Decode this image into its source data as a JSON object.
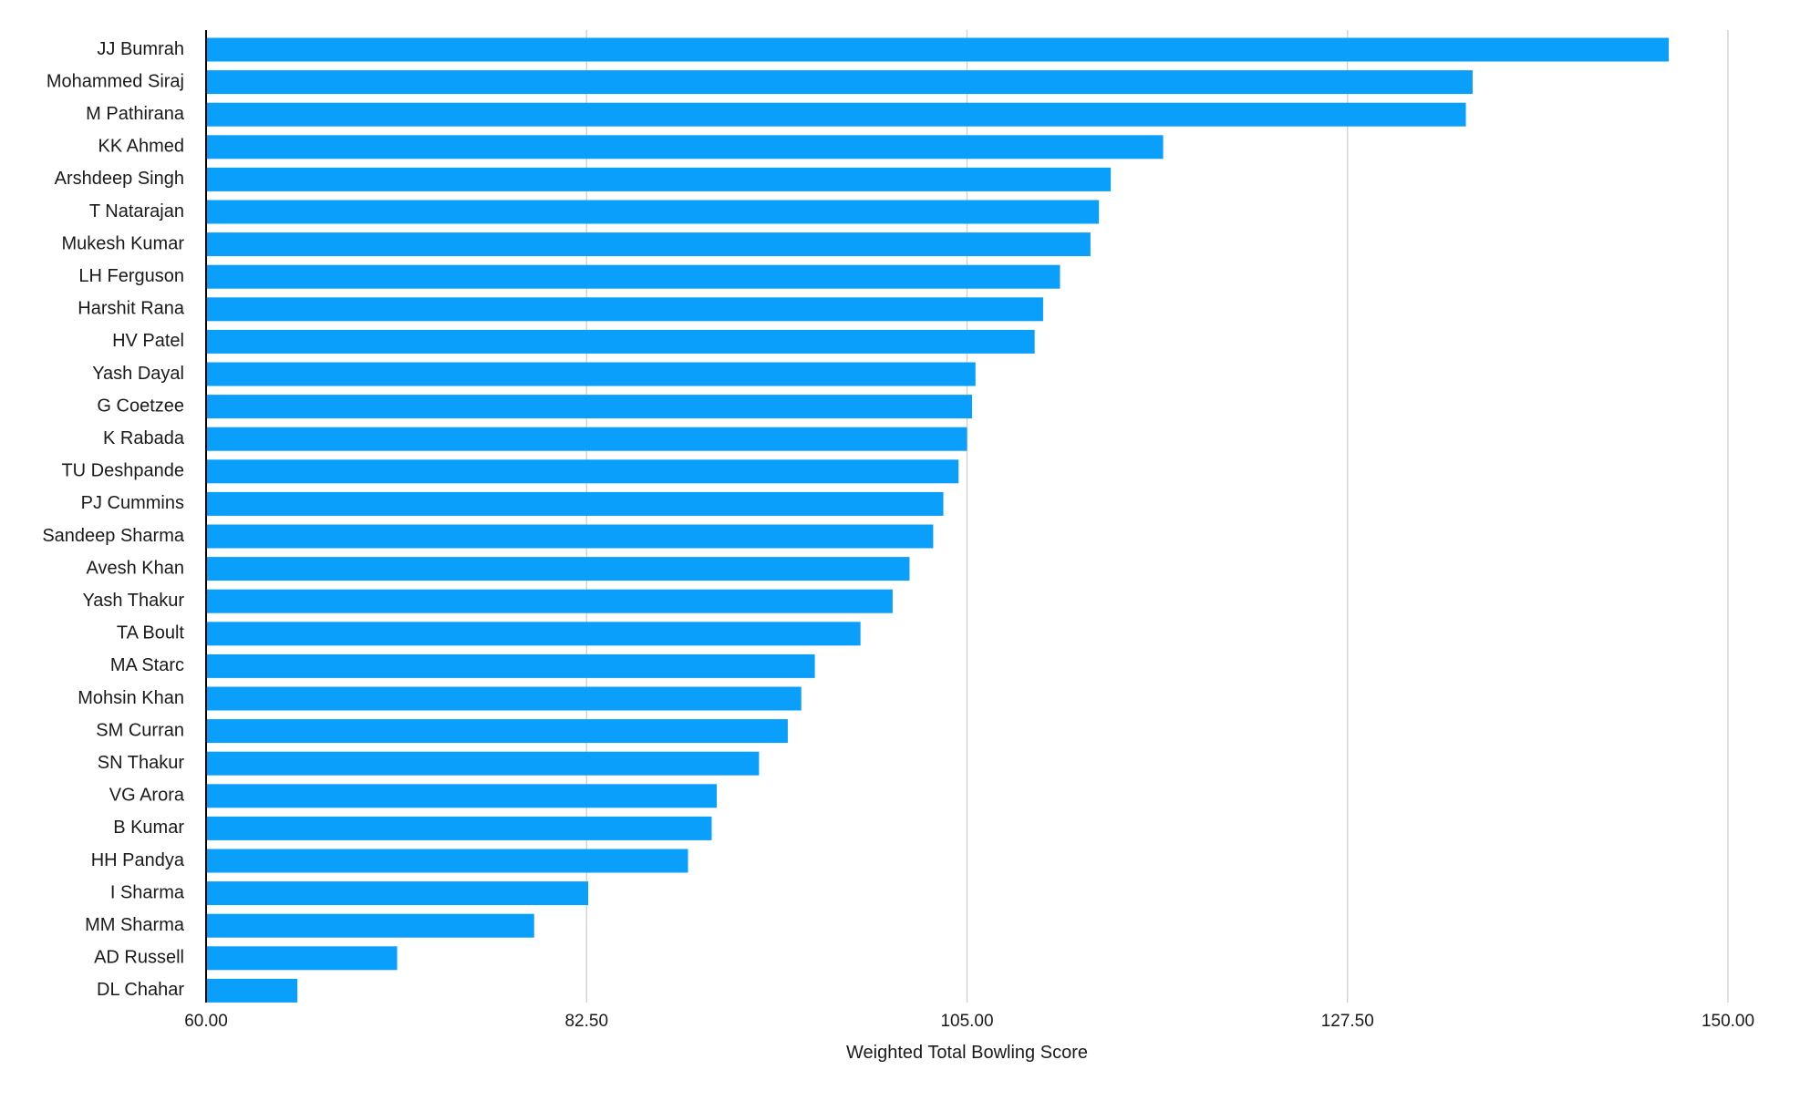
{
  "chart_data": {
    "type": "bar",
    "orientation": "horizontal",
    "title": "",
    "xlabel": "Weighted Total Bowling Score",
    "ylabel": "",
    "xlim": [
      60,
      150
    ],
    "x_ticks": [
      "60.00",
      "82.50",
      "105.00",
      "127.50",
      "150.00"
    ],
    "x_tick_values": [
      60,
      82.5,
      105,
      127.5,
      150
    ],
    "grid": true,
    "legend": "none",
    "bar_color": "#0A9FFA",
    "categories": [
      "JJ Bumrah",
      "Mohammed Siraj",
      "M Pathirana",
      "KK Ahmed",
      "Arshdeep Singh",
      "T Natarajan",
      "Mukesh Kumar",
      "LH Ferguson",
      "Harshit Rana",
      "HV Patel",
      "Yash Dayal",
      "G Coetzee",
      "K Rabada",
      "TU Deshpande",
      "PJ Cummins",
      "Sandeep Sharma",
      "Avesh Khan",
      "Yash Thakur",
      "TA Boult",
      "MA Starc",
      "Mohsin Khan",
      "SM Curran",
      "SN Thakur",
      "VG Arora",
      "B Kumar",
      "HH Pandya",
      "I Sharma",
      "MM Sharma",
      "AD Russell",
      "DL Chahar"
    ],
    "values": [
      146.5,
      134.9,
      134.5,
      116.6,
      113.5,
      112.8,
      112.3,
      110.5,
      109.5,
      109.0,
      105.5,
      105.3,
      105.0,
      104.5,
      103.6,
      103.0,
      101.6,
      100.6,
      98.7,
      96.0,
      95.2,
      94.4,
      92.7,
      90.2,
      89.9,
      88.5,
      82.6,
      79.4,
      71.3,
      65.4
    ]
  }
}
